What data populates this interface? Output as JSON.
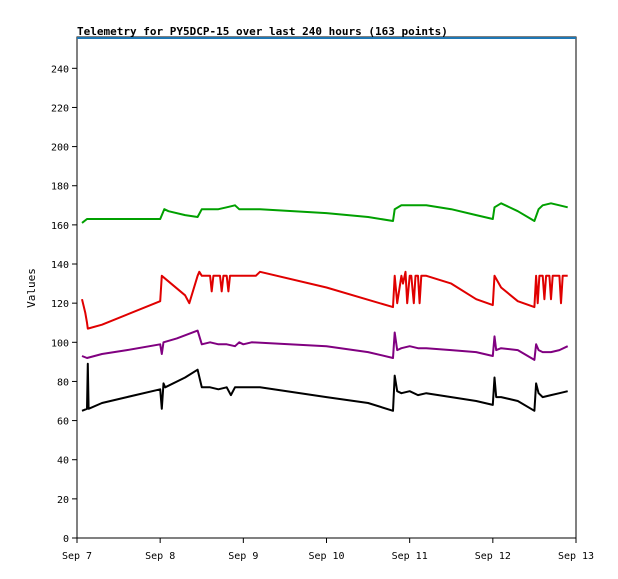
{
  "chart_data": {
    "type": "line",
    "title": "Telemetry for PY5DCP-15 over last 240 hours (163 points)",
    "xlabel": "",
    "ylabel": "Values",
    "ylim": [
      0,
      256
    ],
    "xlim": [
      0,
      6
    ],
    "grid": false,
    "legend": "none",
    "yticks": [
      0,
      20,
      40,
      60,
      80,
      100,
      120,
      140,
      160,
      180,
      200,
      220,
      240
    ],
    "xticks": [
      {
        "x": 0,
        "label": "Sep 7"
      },
      {
        "x": 1,
        "label": "Sep 8"
      },
      {
        "x": 2,
        "label": "Sep 9"
      },
      {
        "x": 3,
        "label": "Sep 10"
      },
      {
        "x": 4,
        "label": "Sep 11"
      },
      {
        "x": 5,
        "label": "Sep 12"
      },
      {
        "x": 6,
        "label": "Sep 13"
      }
    ],
    "series": [
      {
        "color": "#1f77b4",
        "x": [
          0.0,
          6.0
        ],
        "y": [
          255.5,
          255.5
        ]
      },
      {
        "color": "#00a000",
        "x": [
          0.06,
          0.12,
          0.3,
          0.6,
          1.0,
          1.05,
          1.1,
          1.3,
          1.45,
          1.5,
          1.7,
          1.8,
          1.9,
          1.95,
          2.0,
          2.2,
          3.0,
          3.5,
          3.8,
          3.82,
          3.9,
          4.0,
          4.2,
          4.5,
          4.8,
          5.0,
          5.02,
          5.1,
          5.3,
          5.5,
          5.55,
          5.6,
          5.7,
          5.8,
          5.9
        ],
        "y": [
          161,
          163,
          163,
          163,
          163,
          168,
          167,
          165,
          164,
          168,
          168,
          169,
          170,
          168,
          168,
          168,
          166,
          164,
          162,
          168,
          170,
          170,
          170,
          168,
          165,
          163,
          169,
          171,
          167,
          162,
          168,
          170,
          171,
          170,
          169
        ]
      },
      {
        "color": "#e00000",
        "x": [
          0.06,
          0.1,
          0.12,
          0.13,
          0.3,
          1.0,
          1.02,
          1.3,
          1.35,
          1.45,
          1.47,
          1.5,
          1.52,
          1.6,
          1.62,
          1.64,
          1.72,
          1.74,
          1.76,
          1.8,
          1.82,
          1.84,
          1.95,
          2.0,
          2.15,
          2.2,
          3.0,
          3.8,
          3.82,
          3.85,
          3.9,
          3.92,
          3.95,
          3.97,
          4.0,
          4.02,
          4.05,
          4.07,
          4.1,
          4.12,
          4.14,
          4.2,
          4.5,
          4.8,
          5.0,
          5.02,
          5.1,
          5.3,
          5.5,
          5.52,
          5.54,
          5.56,
          5.6,
          5.62,
          5.64,
          5.68,
          5.7,
          5.72,
          5.8,
          5.82,
          5.84,
          5.9
        ],
        "y": [
          122,
          115,
          110,
          107,
          109,
          121,
          134,
          124,
          120,
          134,
          136,
          134,
          134,
          134,
          126,
          134,
          134,
          126,
          134,
          134,
          126,
          134,
          134,
          134,
          134,
          136,
          128,
          118,
          134,
          120,
          134,
          130,
          136,
          120,
          134,
          134,
          120,
          134,
          134,
          120,
          134,
          134,
          130,
          122,
          119,
          134,
          128,
          121,
          118,
          134,
          120,
          134,
          134,
          122,
          134,
          134,
          122,
          134,
          134,
          120,
          134,
          134
        ]
      },
      {
        "color": "#800080",
        "x": [
          0.06,
          0.12,
          0.3,
          0.6,
          1.0,
          1.02,
          1.04,
          1.2,
          1.45,
          1.5,
          1.6,
          1.7,
          1.8,
          1.9,
          1.95,
          2.0,
          2.1,
          3.0,
          3.5,
          3.8,
          3.82,
          3.85,
          3.9,
          4.0,
          4.1,
          4.2,
          4.5,
          4.8,
          5.0,
          5.02,
          5.04,
          5.1,
          5.3,
          5.5,
          5.52,
          5.55,
          5.6,
          5.7,
          5.8,
          5.9
        ],
        "y": [
          93,
          92,
          94,
          96,
          99,
          94,
          100,
          102,
          106,
          99,
          100,
          99,
          99,
          98,
          100,
          99,
          100,
          98,
          95,
          92,
          105,
          96,
          97,
          98,
          97,
          97,
          96,
          95,
          93,
          103,
          96,
          97,
          96,
          91,
          99,
          96,
          95,
          95,
          96,
          98
        ]
      },
      {
        "color": "#000000",
        "x": [
          0.06,
          0.12,
          0.13,
          0.14,
          0.3,
          0.6,
          1.0,
          1.02,
          1.04,
          1.06,
          1.3,
          1.45,
          1.5,
          1.6,
          1.7,
          1.8,
          1.85,
          1.9,
          2.0,
          2.2,
          3.0,
          3.5,
          3.8,
          3.82,
          3.85,
          3.9,
          4.0,
          4.1,
          4.2,
          4.5,
          4.8,
          5.0,
          5.02,
          5.04,
          5.1,
          5.3,
          5.5,
          5.52,
          5.55,
          5.6,
          5.7,
          5.8,
          5.9
        ],
        "y": [
          65,
          66,
          89,
          66,
          69,
          72,
          76,
          66,
          79,
          77,
          82,
          86,
          77,
          77,
          76,
          77,
          73,
          77,
          77,
          77,
          72,
          69,
          65,
          83,
          75,
          74,
          75,
          73,
          74,
          72,
          70,
          68,
          82,
          72,
          72,
          70,
          65,
          79,
          74,
          72,
          73,
          74,
          75
        ]
      }
    ]
  }
}
